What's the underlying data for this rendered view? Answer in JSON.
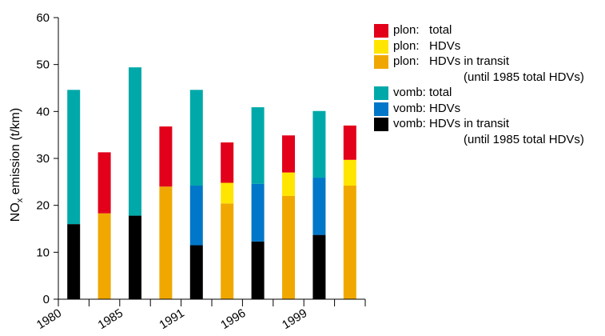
{
  "chart_data": {
    "type": "bar",
    "stacked": true,
    "ylabel_prefix": "NO",
    "ylabel_sub": "x",
    "ylabel_suffix": " emission (t/km)",
    "ylim": [
      0,
      60
    ],
    "yticks": [
      0,
      10,
      20,
      30,
      40,
      50,
      60
    ],
    "xtick_labels": [
      "1980",
      "1985",
      "1991",
      "1996",
      "1999"
    ],
    "colors": {
      "plon_total": "#e2001a",
      "plon_hdv": "#ffe500",
      "plon_transit": "#f0a800",
      "vomb_total": "#00a9a9",
      "vomb_hdv": "#0077c8",
      "vomb_transit": "#000000"
    },
    "bars": [
      {
        "site": "vomb",
        "transit": 16,
        "hdv": 16,
        "total": 44.6
      },
      {
        "site": "plon",
        "transit": 18.3,
        "hdv": 18.3,
        "total": 31.3
      },
      {
        "site": "vomb",
        "transit": 17.8,
        "hdv": 17.8,
        "total": 49.4
      },
      {
        "site": "plon",
        "transit": 24,
        "hdv": 24,
        "total": 36.8
      },
      {
        "site": "vomb",
        "transit": 11.5,
        "hdv": 24.2,
        "total": 44.6
      },
      {
        "site": "plon",
        "transit": 20.4,
        "hdv": 24.8,
        "total": 33.4
      },
      {
        "site": "vomb",
        "transit": 12.3,
        "hdv": 24.6,
        "total": 40.9
      },
      {
        "site": "plon",
        "transit": 22,
        "hdv": 27,
        "total": 34.9
      },
      {
        "site": "vomb",
        "transit": 13.7,
        "hdv": 25.9,
        "total": 40.1
      },
      {
        "site": "plon",
        "transit": 24.2,
        "hdv": 29.7,
        "total": 37
      }
    ],
    "legend": [
      {
        "key": "plon_total",
        "label": "plon:   total",
        "note": ""
      },
      {
        "key": "plon_hdv",
        "label": "plon:   HDVs",
        "note": ""
      },
      {
        "key": "plon_transit",
        "label": "plon:   HDVs in transit",
        "note": "(until 1985 total HDVs)"
      },
      {
        "key": "vomb_total",
        "label": "vomb: total",
        "note": ""
      },
      {
        "key": "vomb_hdv",
        "label": "vomb: HDVs",
        "note": ""
      },
      {
        "key": "vomb_transit",
        "label": "vomb: HDVs in transit",
        "note": "(until 1985 total HDVs)"
      }
    ]
  }
}
